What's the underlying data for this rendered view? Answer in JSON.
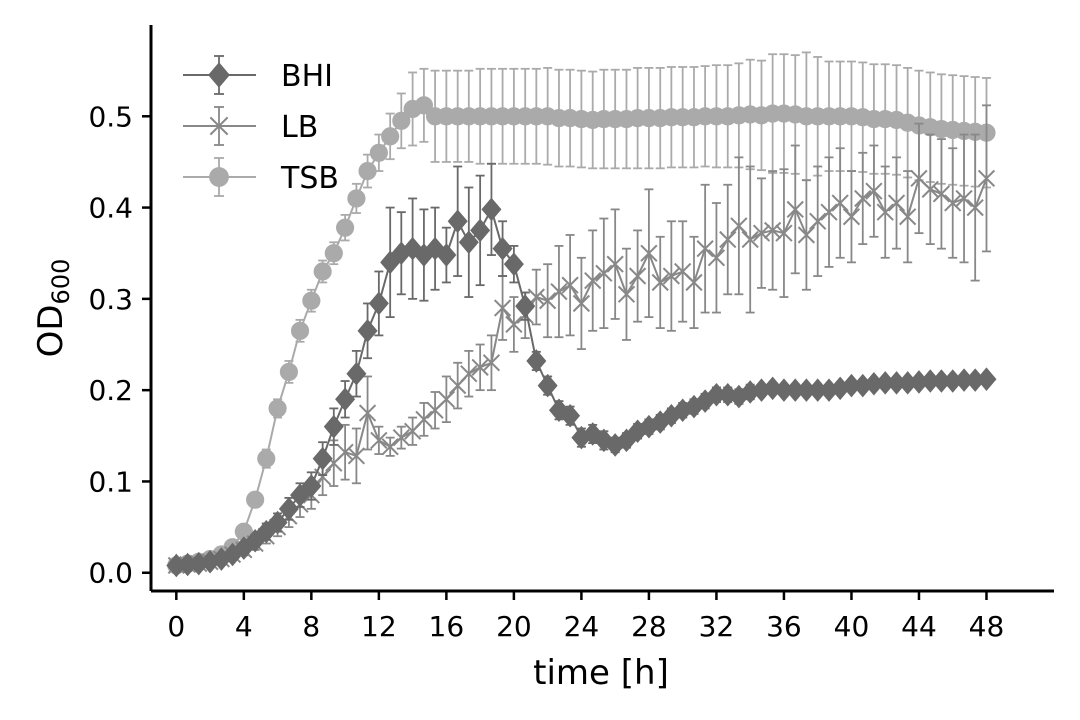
{
  "chart_data": {
    "type": "line",
    "xlabel": "time [h]",
    "ylabel_main": "OD",
    "ylabel_sub": "600",
    "xlim": [
      -1.5,
      52
    ],
    "ylim": [
      -0.02,
      0.6
    ],
    "xticks": [
      0,
      4,
      8,
      12,
      16,
      20,
      24,
      28,
      32,
      36,
      40,
      44,
      48
    ],
    "yticks": [
      0.0,
      0.1,
      0.2,
      0.3,
      0.4,
      0.5
    ],
    "ytick_labels": [
      "0.0",
      "0.1",
      "0.2",
      "0.3",
      "0.4",
      "0.5"
    ],
    "legend_position": "top-left",
    "grid": false,
    "series": [
      {
        "name": "BHI",
        "marker": "diamond",
        "color": "#696969",
        "x": [
          0,
          0.67,
          1.33,
          2.0,
          2.67,
          3.33,
          4.0,
          4.67,
          5.33,
          6.0,
          6.67,
          7.33,
          8.0,
          8.67,
          9.33,
          10.0,
          10.67,
          11.33,
          12.0,
          12.67,
          13.33,
          14.0,
          14.67,
          15.33,
          16.0,
          16.67,
          17.33,
          18.0,
          18.67,
          19.33,
          20.0,
          20.67,
          21.33,
          22.0,
          22.67,
          23.33,
          24.0,
          24.67,
          25.33,
          26.0,
          26.67,
          27.33,
          28.0,
          28.67,
          29.33,
          30.0,
          30.67,
          31.33,
          32.0,
          32.67,
          33.33,
          34.0,
          34.67,
          35.33,
          36.0,
          36.67,
          37.33,
          38.0,
          38.67,
          39.33,
          40.0,
          40.67,
          41.33,
          42.0,
          42.67,
          43.33,
          44.0,
          44.67,
          45.33,
          46.0,
          46.67,
          47.33,
          48.0
        ],
        "y": [
          0.008,
          0.009,
          0.01,
          0.012,
          0.015,
          0.02,
          0.027,
          0.035,
          0.045,
          0.055,
          0.07,
          0.085,
          0.095,
          0.125,
          0.16,
          0.19,
          0.218,
          0.265,
          0.295,
          0.34,
          0.35,
          0.355,
          0.348,
          0.355,
          0.348,
          0.385,
          0.362,
          0.375,
          0.398,
          0.355,
          0.338,
          0.292,
          0.232,
          0.205,
          0.178,
          0.172,
          0.148,
          0.152,
          0.145,
          0.14,
          0.145,
          0.155,
          0.16,
          0.165,
          0.172,
          0.178,
          0.182,
          0.188,
          0.195,
          0.195,
          0.193,
          0.198,
          0.2,
          0.202,
          0.2,
          0.2,
          0.2,
          0.2,
          0.2,
          0.202,
          0.205,
          0.205,
          0.207,
          0.208,
          0.208,
          0.208,
          0.209,
          0.21,
          0.21,
          0.21,
          0.211,
          0.211,
          0.212
        ],
        "err": [
          0.003,
          0.003,
          0.003,
          0.004,
          0.004,
          0.005,
          0.006,
          0.007,
          0.009,
          0.01,
          0.012,
          0.013,
          0.015,
          0.018,
          0.02,
          0.02,
          0.025,
          0.03,
          0.035,
          0.06,
          0.045,
          0.055,
          0.05,
          0.045,
          0.03,
          0.06,
          0.06,
          0.06,
          0.05,
          0.03,
          0.02,
          0.015,
          0.01,
          0.01,
          0.01,
          0.01,
          0.01,
          0.01,
          0.01,
          0.008,
          0.008,
          0.008,
          0.008,
          0.008,
          0.008,
          0.008,
          0.008,
          0.008,
          0.008,
          0.008,
          0.008,
          0.008,
          0.006,
          0.006,
          0.006,
          0.006,
          0.006,
          0.006,
          0.006,
          0.006,
          0.006,
          0.006,
          0.006,
          0.006,
          0.006,
          0.006,
          0.006,
          0.006,
          0.006,
          0.006,
          0.006,
          0.006,
          0.006
        ]
      },
      {
        "name": "LB",
        "marker": "x",
        "color": "#888888",
        "x": [
          0,
          0.67,
          1.33,
          2.0,
          2.67,
          3.33,
          4.0,
          4.67,
          5.33,
          6.0,
          6.67,
          7.33,
          8.0,
          8.67,
          9.33,
          10.0,
          10.67,
          11.33,
          12.0,
          12.67,
          13.33,
          14.0,
          14.67,
          15.33,
          16.0,
          16.67,
          17.33,
          18.0,
          18.67,
          19.33,
          20.0,
          20.67,
          21.33,
          22.0,
          22.67,
          23.33,
          24.0,
          24.67,
          25.33,
          26.0,
          26.67,
          27.33,
          28.0,
          28.67,
          29.33,
          30.0,
          30.67,
          31.33,
          32.0,
          32.67,
          33.33,
          34.0,
          34.67,
          35.33,
          36.0,
          36.67,
          37.33,
          38.0,
          38.67,
          39.33,
          40.0,
          40.67,
          41.33,
          42.0,
          42.67,
          43.33,
          44.0,
          44.67,
          45.33,
          46.0,
          46.67,
          47.33,
          48.0
        ],
        "y": [
          0.008,
          0.009,
          0.01,
          0.012,
          0.015,
          0.02,
          0.025,
          0.032,
          0.04,
          0.05,
          0.062,
          0.075,
          0.085,
          0.105,
          0.12,
          0.132,
          0.128,
          0.175,
          0.145,
          0.138,
          0.148,
          0.155,
          0.168,
          0.178,
          0.19,
          0.205,
          0.218,
          0.225,
          0.23,
          0.29,
          0.272,
          0.282,
          0.302,
          0.298,
          0.308,
          0.315,
          0.295,
          0.32,
          0.328,
          0.338,
          0.305,
          0.325,
          0.35,
          0.318,
          0.325,
          0.33,
          0.318,
          0.355,
          0.345,
          0.365,
          0.38,
          0.365,
          0.372,
          0.375,
          0.372,
          0.398,
          0.37,
          0.385,
          0.395,
          0.405,
          0.39,
          0.41,
          0.418,
          0.395,
          0.405,
          0.39,
          0.432,
          0.42,
          0.415,
          0.405,
          0.41,
          0.4,
          0.432
        ],
        "err": [
          0.003,
          0.003,
          0.003,
          0.004,
          0.004,
          0.005,
          0.006,
          0.007,
          0.008,
          0.01,
          0.012,
          0.014,
          0.015,
          0.02,
          0.025,
          0.03,
          0.03,
          0.04,
          0.015,
          0.01,
          0.012,
          0.015,
          0.018,
          0.02,
          0.025,
          0.025,
          0.025,
          0.025,
          0.03,
          0.035,
          0.03,
          0.025,
          0.03,
          0.04,
          0.05,
          0.055,
          0.05,
          0.055,
          0.06,
          0.06,
          0.05,
          0.05,
          0.07,
          0.05,
          0.06,
          0.055,
          0.05,
          0.07,
          0.06,
          0.06,
          0.075,
          0.08,
          0.06,
          0.065,
          0.07,
          0.07,
          0.06,
          0.06,
          0.06,
          0.06,
          0.05,
          0.05,
          0.05,
          0.05,
          0.05,
          0.05,
          0.06,
          0.06,
          0.06,
          0.06,
          0.07,
          0.08,
          0.08
        ]
      },
      {
        "name": "TSB",
        "marker": "circle",
        "color": "#aaaaaa",
        "x": [
          0,
          0.67,
          1.33,
          2.0,
          2.67,
          3.33,
          4.0,
          4.67,
          5.33,
          6.0,
          6.67,
          7.33,
          8.0,
          8.67,
          9.33,
          10.0,
          10.67,
          11.33,
          12.0,
          12.67,
          13.33,
          14.0,
          14.67,
          15.33,
          16.0,
          16.67,
          17.33,
          18.0,
          18.67,
          19.33,
          20.0,
          20.67,
          21.33,
          22.0,
          22.67,
          23.33,
          24.0,
          24.67,
          25.33,
          26.0,
          26.67,
          27.33,
          28.0,
          28.67,
          29.33,
          30.0,
          30.67,
          31.33,
          32.0,
          32.67,
          33.33,
          34.0,
          34.67,
          35.33,
          36.0,
          36.67,
          37.33,
          38.0,
          38.67,
          39.33,
          40.0,
          40.67,
          41.33,
          42.0,
          42.67,
          43.33,
          44.0,
          44.67,
          45.33,
          46.0,
          46.67,
          47.33,
          48.0
        ],
        "y": [
          0.008,
          0.01,
          0.012,
          0.015,
          0.02,
          0.028,
          0.045,
          0.08,
          0.125,
          0.18,
          0.22,
          0.265,
          0.298,
          0.33,
          0.35,
          0.378,
          0.41,
          0.44,
          0.46,
          0.478,
          0.495,
          0.508,
          0.512,
          0.5,
          0.5,
          0.5,
          0.5,
          0.5,
          0.5,
          0.5,
          0.5,
          0.5,
          0.5,
          0.5,
          0.498,
          0.498,
          0.497,
          0.496,
          0.497,
          0.497,
          0.497,
          0.498,
          0.498,
          0.498,
          0.499,
          0.499,
          0.499,
          0.5,
          0.5,
          0.5,
          0.501,
          0.502,
          0.501,
          0.503,
          0.503,
          0.502,
          0.5,
          0.5,
          0.5,
          0.5,
          0.5,
          0.499,
          0.497,
          0.497,
          0.496,
          0.493,
          0.49,
          0.488,
          0.486,
          0.485,
          0.484,
          0.483,
          0.482
        ],
        "err": [
          0.002,
          0.002,
          0.003,
          0.003,
          0.004,
          0.005,
          0.006,
          0.008,
          0.01,
          0.01,
          0.012,
          0.012,
          0.012,
          0.012,
          0.012,
          0.014,
          0.016,
          0.018,
          0.02,
          0.025,
          0.03,
          0.04,
          0.04,
          0.05,
          0.05,
          0.05,
          0.05,
          0.052,
          0.052,
          0.052,
          0.052,
          0.052,
          0.052,
          0.053,
          0.053,
          0.053,
          0.053,
          0.053,
          0.054,
          0.054,
          0.054,
          0.055,
          0.055,
          0.055,
          0.055,
          0.055,
          0.055,
          0.055,
          0.056,
          0.056,
          0.057,
          0.06,
          0.06,
          0.065,
          0.065,
          0.065,
          0.07,
          0.065,
          0.06,
          0.06,
          0.06,
          0.06,
          0.06,
          0.06,
          0.06,
          0.06,
          0.06,
          0.06,
          0.06,
          0.06,
          0.06,
          0.06,
          0.06
        ]
      }
    ]
  }
}
